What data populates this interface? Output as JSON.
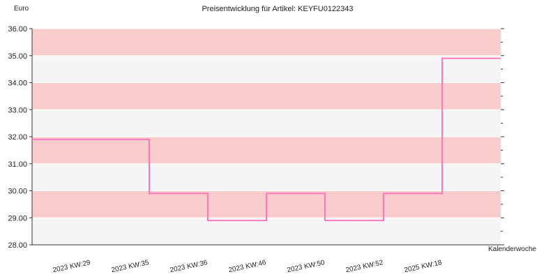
{
  "chart_data": {
    "type": "line",
    "step": true,
    "title": "Preisentwicklung für Artikel: KEYFU0122343",
    "ylabel": "Euro",
    "xlabel": "Kalenderwoche",
    "ylim": [
      28,
      36
    ],
    "yticks": [
      "28.00",
      "29.00",
      "30.00",
      "31.00",
      "32.00",
      "33.00",
      "34.00",
      "35.00",
      "36.00"
    ],
    "categories": [
      "2023 KW:29",
      "2023 KW:35",
      "2023 KW:36",
      "2023 KW:46",
      "2023 KW:50",
      "2023 KW:52",
      "2025 KW:18"
    ],
    "series": [
      {
        "values": [
          31.9,
          29.9,
          28.9,
          29.9,
          28.9,
          29.9,
          34.9
        ]
      }
    ],
    "colors": {
      "line": "#ff77bb",
      "band_pink": "#f9cccc",
      "band_gray": "#f5f5f5",
      "grid": "#ffffff",
      "axis": "#333333"
    },
    "grid": true
  }
}
